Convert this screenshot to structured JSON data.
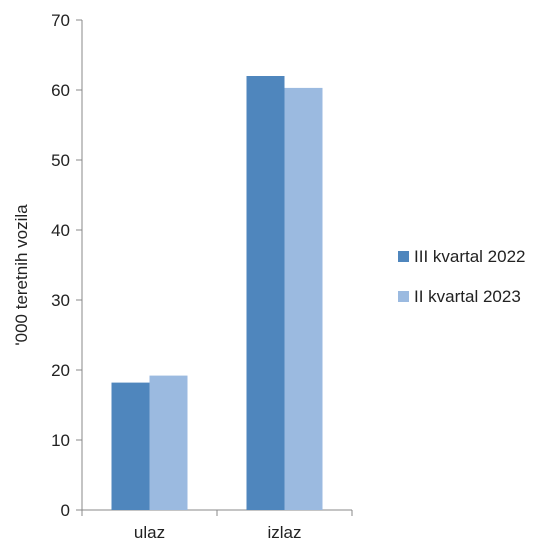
{
  "chart_data": {
    "type": "bar",
    "categories": [
      "ulaz",
      "izlaz"
    ],
    "series": [
      {
        "name": "III kvartal 2022",
        "values": [
          18.2,
          62.0
        ],
        "color": "#4f86bd"
      },
      {
        "name": "II kvartal 2023",
        "values": [
          19.2,
          60.3
        ],
        "color": "#9bbae0"
      }
    ],
    "title": "",
    "xlabel": "",
    "ylabel": "'000 teretnih vozila",
    "ylim": [
      0,
      70
    ],
    "yticks": [
      0,
      10,
      20,
      30,
      40,
      50,
      60,
      70
    ],
    "grid": false,
    "legend_position": "right"
  }
}
